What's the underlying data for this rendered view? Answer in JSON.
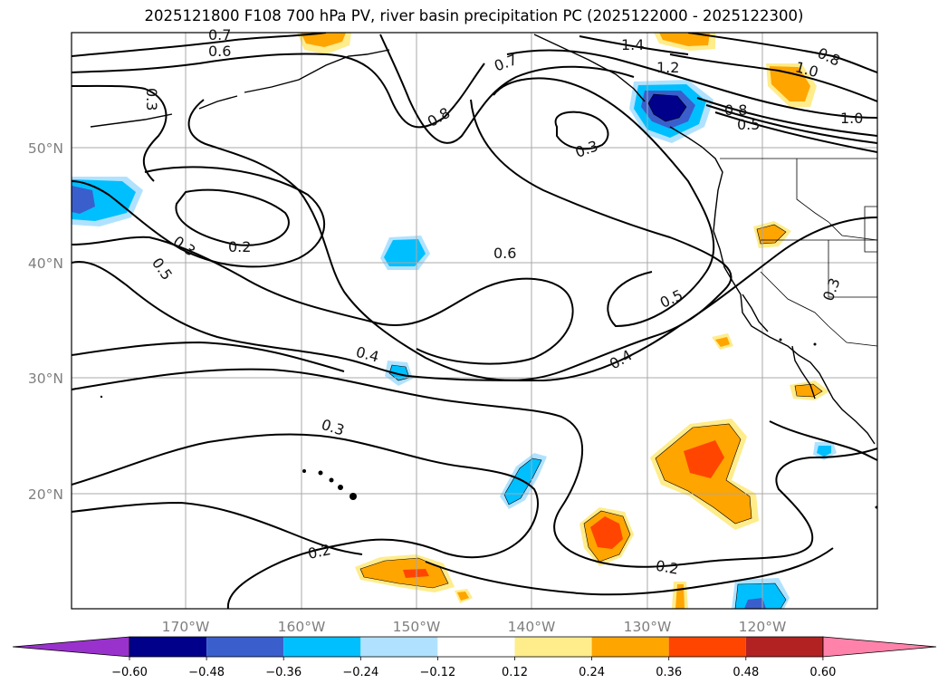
{
  "title": "2025121800 F108 700 hPa PV, river basin precipitation PC (2025122000 - 2025122300)",
  "map": {
    "lat_labels": [
      "50°N",
      "40°N",
      "30°N",
      "20°N"
    ],
    "lon_labels": [
      "170°W",
      "160°W",
      "150°W",
      "140°W",
      "130°W",
      "120°W"
    ]
  },
  "contour_labels": [
    "0.7",
    "0.6",
    "0.3",
    "0.7",
    "0.8",
    "1.4",
    "1.2",
    "1.0",
    "0.8",
    "0.8",
    "0.5",
    "1.0",
    "0.3",
    "0.3",
    "0.2",
    "0.5",
    "0.6",
    "0.5",
    "0.3",
    "0.4",
    "0.4",
    "0.3",
    "0.2",
    "0.2"
  ],
  "colorbar": {
    "ticks": [
      "−0.60",
      "−0.48",
      "−0.36",
      "−0.24",
      "−0.12",
      "0.12",
      "0.24",
      "0.36",
      "0.48",
      "0.60"
    ],
    "colors": [
      "#9932cc",
      "#00008b",
      "#3a5fcd",
      "#00bfff",
      "#b0e2ff",
      "#ffffff",
      "#ffec8b",
      "#ffa500",
      "#ff4500",
      "#b22222",
      "#ff82ab"
    ]
  }
}
